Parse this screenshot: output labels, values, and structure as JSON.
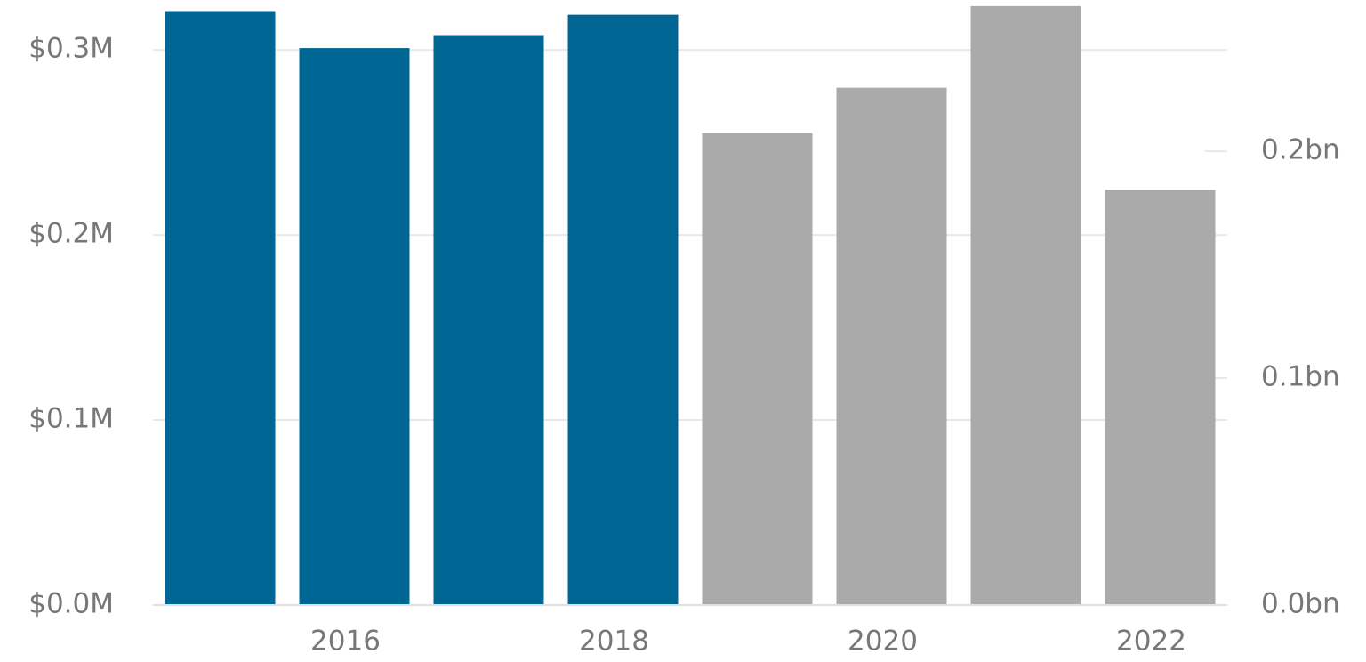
{
  "chart_data": {
    "type": "bar",
    "categories": [
      null,
      "2016",
      null,
      "2018",
      null,
      "2020",
      null,
      "2022"
    ],
    "series": [
      {
        "color": "#006694",
        "values": [
          321000,
          301000,
          308000,
          319000,
          null,
          null,
          null,
          null
        ]
      },
      {
        "color": "#aaaaaa",
        "axis": "y2",
        "values": [
          null,
          null,
          null,
          null,
          208000000,
          228000000,
          264000000,
          183000000
        ]
      }
    ],
    "ylim": [
      0,
      327000
    ],
    "yticks": [
      {
        "value": 0,
        "label": "$0.0M"
      },
      {
        "value": 100000,
        "label": "$0.1M"
      },
      {
        "value": 200000,
        "label": "$0.2M"
      },
      {
        "value": 300000,
        "label": "$0.3M"
      }
    ],
    "y2lim": [
      0,
      266700000
    ],
    "y2ticks": [
      {
        "value": 0,
        "label": "0.0bn"
      },
      {
        "value": 100000000,
        "label": "0.1bn"
      },
      {
        "value": 200000000,
        "label": "0.2bn"
      }
    ],
    "grid": true
  }
}
